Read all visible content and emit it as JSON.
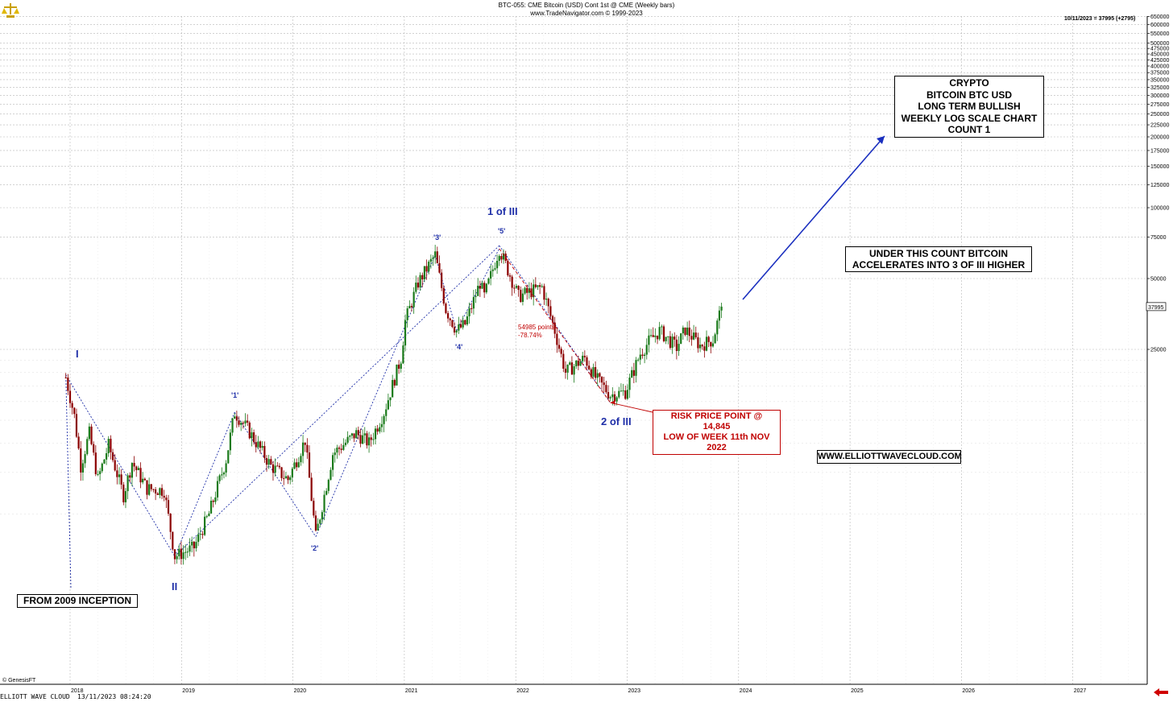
{
  "header": {
    "line1": "BTC-055:  CME Bitcoin (USD) Cont 1st @ CME  (Weekly bars)",
    "line2": "www.TradeNavigator.com © 1999-2023"
  },
  "top_right_quote": "10/11/2023 = 37995 (+2795)",
  "last_price_tag": "37995",
  "footer": {
    "source": "© GenesisFT",
    "brand": "ELLIOTT WAVE CLOUD",
    "timestamp": "13/11/2023 08:24:20"
  },
  "title_box": [
    "CRYPTO",
    "BITCOIN BTC USD",
    "LONG TERM BULLISH",
    "WEEKLY LOG SCALE CHART",
    "COUNT 1"
  ],
  "note_box": [
    "UNDER THIS COUNT BITCOIN",
    "ACCELERATES INTO 3 OF III HIGHER"
  ],
  "website_box": "WWW.ELLIOTTWAVECLOUD.COM",
  "inception_box": "FROM 2009 INCEPTION",
  "risk_box": [
    "RISK PRICE POINT @ 14,845",
    "LOW OF WEEK 11th NOV 2022"
  ],
  "drop_note": [
    "54985 points",
    "-78.74%"
  ],
  "wave_labels": {
    "I": "I",
    "II": "II",
    "w1": "'1'",
    "w2": "'2'",
    "w3": "'3'",
    "w4": "'4'",
    "w5": "'5'",
    "one_of_three": "1 of III",
    "two_of_three": "2 of III"
  },
  "colors": {
    "up_candle": "#1a7a1a",
    "down_candle": "#8b0000",
    "wave_line": "#1f2fa8",
    "annotation_red": "#c00000",
    "grid": "#b8b8b8"
  },
  "chart_data": {
    "type": "candlestick",
    "title": "BTC-055:  CME Bitcoin (USD) Cont 1st @ CME  (Weekly bars)",
    "scale": "log",
    "grid": true,
    "x_ticks": [
      "2018",
      "2019",
      "2020",
      "2021",
      "2022",
      "2023",
      "2024",
      "2025",
      "2026",
      "2027"
    ],
    "y_ticks": [
      25000,
      50000,
      75000,
      100000,
      125000,
      150000,
      175000,
      200000,
      225000,
      250000,
      275000,
      300000,
      325000,
      350000,
      375000,
      400000,
      425000,
      450000,
      475000,
      500000,
      550000,
      600000,
      650000
    ],
    "y_ticks_labels": [
      "25000",
      "50000",
      "75000",
      "100000",
      "125000",
      "150000",
      "175000",
      "200000",
      "225000",
      "250000",
      "275000",
      "300000",
      "325000",
      "350000",
      "375000",
      "400000",
      "425000",
      "450000",
      "475000",
      "500000",
      "550000",
      "600000",
      "650000"
    ],
    "price_path": [
      {
        "date": "2017-12-18",
        "price": 19000
      },
      {
        "date": "2018-01-15",
        "price": 13000
      },
      {
        "date": "2018-02-05",
        "price": 8000
      },
      {
        "date": "2018-03-05",
        "price": 11000
      },
      {
        "date": "2018-04-02",
        "price": 7000
      },
      {
        "date": "2018-05-07",
        "price": 9800
      },
      {
        "date": "2018-06-25",
        "price": 6000
      },
      {
        "date": "2018-07-23",
        "price": 8300
      },
      {
        "date": "2018-09-10",
        "price": 6400
      },
      {
        "date": "2018-11-05",
        "price": 6300
      },
      {
        "date": "2018-12-10",
        "price": 3300
      },
      {
        "date": "2019-02-11",
        "price": 3600
      },
      {
        "date": "2019-04-01",
        "price": 5000
      },
      {
        "date": "2019-05-27",
        "price": 8500
      },
      {
        "date": "2019-06-24",
        "price": 13500
      },
      {
        "date": "2019-08-05",
        "price": 11500
      },
      {
        "date": "2019-10-21",
        "price": 8000
      },
      {
        "date": "2019-12-16",
        "price": 7000
      },
      {
        "date": "2020-02-10",
        "price": 10300
      },
      {
        "date": "2020-03-16",
        "price": 4000
      },
      {
        "date": "2020-05-11",
        "price": 9000
      },
      {
        "date": "2020-07-27",
        "price": 11000
      },
      {
        "date": "2020-09-07",
        "price": 10000
      },
      {
        "date": "2020-10-26",
        "price": 13500
      },
      {
        "date": "2020-12-21",
        "price": 23000
      },
      {
        "date": "2021-01-04",
        "price": 33000
      },
      {
        "date": "2021-02-15",
        "price": 48000
      },
      {
        "date": "2021-04-12",
        "price": 63000
      },
      {
        "date": "2021-05-17",
        "price": 37000
      },
      {
        "date": "2021-06-21",
        "price": 30000
      },
      {
        "date": "2021-07-19",
        "price": 32000
      },
      {
        "date": "2021-09-06",
        "price": 48000
      },
      {
        "date": "2021-09-20",
        "price": 42000
      },
      {
        "date": "2021-11-08",
        "price": 67000
      },
      {
        "date": "2022-01-10",
        "price": 42000
      },
      {
        "date": "2022-03-28",
        "price": 46000
      },
      {
        "date": "2022-05-09",
        "price": 30000
      },
      {
        "date": "2022-06-13",
        "price": 20000
      },
      {
        "date": "2022-08-15",
        "price": 23000
      },
      {
        "date": "2022-09-19",
        "price": 19000
      },
      {
        "date": "2022-11-07",
        "price": 16000
      },
      {
        "date": "2022-12-26",
        "price": 16500
      },
      {
        "date": "2023-02-13",
        "price": 24000
      },
      {
        "date": "2023-03-13",
        "price": 27000
      },
      {
        "date": "2023-04-17",
        "price": 30000
      },
      {
        "date": "2023-06-12",
        "price": 25500
      },
      {
        "date": "2023-07-10",
        "price": 30500
      },
      {
        "date": "2023-08-28",
        "price": 26000
      },
      {
        "date": "2023-10-09",
        "price": 27500
      },
      {
        "date": "2023-11-06",
        "price": 37995
      }
    ],
    "last_price": 37995,
    "wave_points": [
      {
        "label": "I",
        "date": "2017-12-18",
        "price": 19500
      },
      {
        "label": "II",
        "date": "2018-12-10",
        "price": 3300
      },
      {
        "label": "'1'",
        "date": "2019-06-24",
        "price": 13500
      },
      {
        "label": "'2'",
        "date": "2020-03-16",
        "price": 4000
      },
      {
        "label": "'3'",
        "date": "2021-04-12",
        "price": 63000
      },
      {
        "label": "'4'",
        "date": "2021-06-21",
        "price": 30000
      },
      {
        "label": "'5'",
        "date": "2021-11-08",
        "price": 67000
      },
      {
        "label": "1 of III",
        "date": "2021-11-08",
        "price": 69000
      },
      {
        "label": "2 of III",
        "date": "2022-11-07",
        "price": 14845
      }
    ],
    "risk_price": 14845,
    "drop_points": 54985,
    "drop_percent": -78.74
  }
}
